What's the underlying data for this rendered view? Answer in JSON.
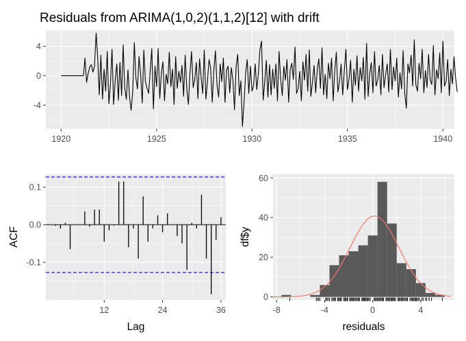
{
  "title": "Residuals from ARIMA(1,0,2)(1,1,2)[12] with drift",
  "chart_data": [
    {
      "type": "line",
      "panel": "residual-series",
      "x_ticks": [
        "1920",
        "1925",
        "1930",
        "1935",
        "1940"
      ],
      "y_ticks": [
        "-4",
        "0",
        "4"
      ],
      "xlim": [
        1919.2,
        1940.6
      ],
      "ylim": [
        -7.2,
        6.2
      ],
      "start": 1920,
      "frequency": 12,
      "series": [
        {
          "values": [
            0,
            0,
            0,
            0,
            0,
            0,
            0,
            0,
            0,
            0,
            0,
            0,
            0,
            0,
            0,
            2.4,
            -0.9,
            0.3,
            1.2,
            1.5,
            0.5,
            1.3,
            5.8,
            2.4,
            -2.6,
            2.8,
            -3.2,
            0.9,
            -2.1,
            3.3,
            -3.8,
            -1.1,
            3.6,
            -3.9,
            -0.6,
            1.6,
            -3.3,
            1.8,
            -2.7,
            4.2,
            -1.7,
            -3.2,
            0.8,
            -2.9,
            -4.7,
            -2.3,
            4.5,
            -0.3,
            -1.8,
            2.6,
            0.1,
            -3.7,
            3.5,
            -0.8,
            -1.7,
            -2.4,
            0.6,
            3.7,
            -4.5,
            1.3,
            -1.5,
            3.7,
            -3.1,
            0.4,
            1.9,
            -3.4,
            0.2,
            -1.1,
            3.2,
            -1.5,
            0.9,
            -3.9,
            2.6,
            -1.7,
            0.6,
            -0.9,
            1.4,
            -2.8,
            2.8,
            -1.8,
            -3.9,
            0.3,
            3.3,
            -1.6,
            -0.5,
            1.8,
            -3.1,
            2.3,
            -0.2,
            -2.4,
            3.5,
            -3.2,
            -0.7,
            2.2,
            1.1,
            -3.6,
            0.7,
            3.4,
            -1.2,
            -2.9,
            1.6,
            -0.8,
            2.4,
            -3.6,
            0.8,
            1.3,
            -2.3,
            1.1,
            -0.6,
            -4.6,
            1.2,
            2.9,
            -2.7,
            -0.7,
            -6.9,
            -3.6,
            0.4,
            2.2,
            -2.4,
            1.3,
            -2.1,
            -1.3,
            1.6,
            -1.9,
            0.3,
            3.6,
            4.7,
            -3.3,
            -0.8,
            2.1,
            -2.9,
            1.5,
            -2.6,
            0.9,
            -1.7,
            1.6,
            -3.4,
            3.3,
            -0.4,
            -2.7,
            1.3,
            -0.6,
            2.2,
            -3.6,
            0.8,
            1.7,
            -0.5,
            3.9,
            -2.4,
            -1.8,
            0.6,
            -3.4,
            1.9,
            -0.6,
            2.9,
            -2.1,
            3.5,
            -2.8,
            -0.9,
            1.4,
            -2.3,
            0.8,
            2.3,
            -1.7,
            3.8,
            -2.6,
            0.2,
            -3.1,
            1.7,
            -0.4,
            2.4,
            -3.4,
            0.7,
            3.2,
            -2.2,
            -0.8,
            1.6,
            -2.6,
            0.6,
            3.6,
            -1.9,
            -0.4,
            2.1,
            -3.6,
            0.9,
            -1.3,
            2.7,
            -2.1,
            1.1,
            -0.7,
            2.5,
            -3.2,
            4.4,
            -2.8,
            0.3,
            1.8,
            -2.3,
            3.3,
            -1.4,
            -0.6,
            1.4,
            -2.6,
            2.9,
            -1.6,
            0.2,
            1.6,
            -2.2,
            3.6,
            -1.9,
            1.2,
            -0.7,
            2.4,
            -2.9,
            0.4,
            -1.8,
            3.4,
            -2.4,
            -4.4,
            1.6,
            0.4,
            2.8,
            -1.4,
            4.9,
            -1.2,
            -2.1,
            1.7,
            -0.4,
            3.6,
            -2.3,
            0.7,
            -1.6,
            2.9,
            -0.6,
            -1.2,
            4.1,
            -2.6,
            0.8,
            -0.4,
            3.1,
            -2.3,
            4.7,
            -1.4,
            -0.8,
            2.2,
            -2.7,
            0.9,
            -1.1,
            2.6,
            -0.4,
            -2.2
          ]
        }
      ]
    },
    {
      "type": "bar",
      "panel": "acf",
      "xlabel": "Lag",
      "ylabel": "ACF",
      "x_ticks": [
        "12",
        "24",
        "36"
      ],
      "y_ticks": [
        "0.1",
        "0.0",
        "-0.1"
      ],
      "xlim": [
        0,
        37
      ],
      "ylim": [
        -0.2,
        0.135
      ],
      "confidence_band": 0.127,
      "lags": [
        1,
        2,
        3,
        4,
        5,
        6,
        7,
        8,
        9,
        10,
        11,
        12,
        13,
        14,
        15,
        16,
        17,
        18,
        19,
        20,
        21,
        22,
        23,
        24,
        25,
        26,
        27,
        28,
        29,
        30,
        31,
        32,
        33,
        34,
        35,
        36
      ],
      "values": [
        0.0,
        -0.003,
        -0.01,
        0.005,
        -0.065,
        0.0,
        0.0,
        0.035,
        -0.005,
        0.04,
        0.04,
        -0.045,
        -0.015,
        -0.002,
        0.115,
        0.115,
        -0.06,
        -0.01,
        -0.09,
        0.075,
        -0.045,
        -0.01,
        0.025,
        -0.02,
        0.03,
        0.0,
        -0.03,
        -0.05,
        -0.12,
        0.005,
        -0.01,
        0.08,
        -0.09,
        -0.185,
        -0.04,
        0.02
      ]
    },
    {
      "type": "histogram",
      "panel": "residual-histogram",
      "xlabel": "residuals",
      "ylabel": "df$y",
      "x_ticks": [
        "-8",
        "-4",
        "0",
        "4"
      ],
      "y_ticks": [
        "0",
        "20",
        "40",
        "60"
      ],
      "xlim": [
        -8.3,
        6.8
      ],
      "ylim": [
        -1.5,
        62
      ],
      "bin_width": 0.8,
      "bin_starts": [
        -7.6,
        -6.8,
        -6.0,
        -5.2,
        -4.4,
        -3.6,
        -2.8,
        -2.0,
        -1.2,
        -0.4,
        0.4,
        1.2,
        2.0,
        2.8,
        3.6,
        4.4,
        5.2
      ],
      "counts": [
        1,
        0,
        0,
        1,
        6,
        16,
        21,
        23,
        26,
        31,
        58,
        37,
        17,
        14,
        7,
        2,
        1
      ],
      "density_curve_color": "#f8766d",
      "bar_color": "#595959"
    }
  ]
}
